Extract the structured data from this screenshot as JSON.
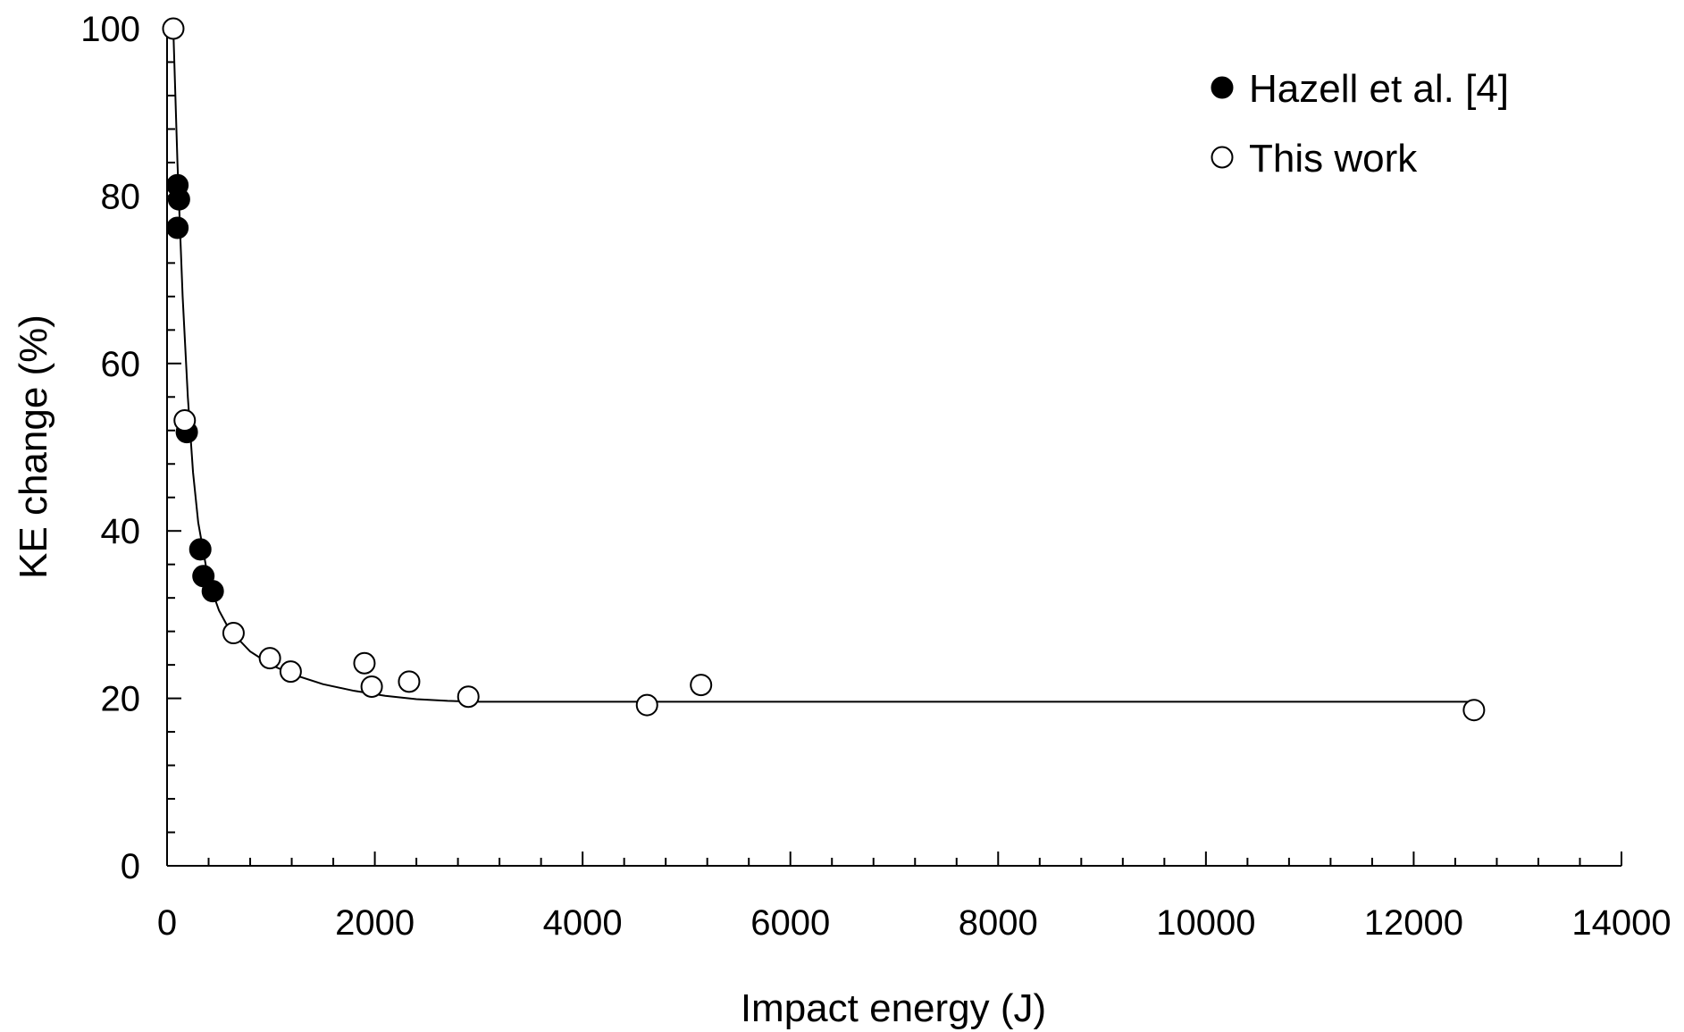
{
  "chart_data": {
    "type": "scatter",
    "xlabel": "Impact energy (J)",
    "ylabel": "KE change (%)",
    "xlim": [
      0,
      14000
    ],
    "ylim": [
      0,
      100
    ],
    "x_ticks": [
      0,
      2000,
      4000,
      6000,
      8000,
      10000,
      12000,
      14000
    ],
    "x_tick_labels": [
      "0",
      "2000",
      "4000",
      "6000",
      "8000",
      "10000",
      "12000",
      "14000"
    ],
    "y_ticks": [
      0,
      20,
      40,
      60,
      80,
      100
    ],
    "y_tick_labels": [
      "0",
      "20",
      "40",
      "60",
      "80",
      "100"
    ],
    "x_minor_step": 400,
    "y_minor_step": 4,
    "grid": false,
    "legend_position": "top-right",
    "series": [
      {
        "name": "Hazell et al. [4]",
        "marker": "filled-circle",
        "color": "#000000",
        "points": [
          {
            "x": 100,
            "y": 81.3
          },
          {
            "x": 115,
            "y": 79.6
          },
          {
            "x": 100,
            "y": 76.2
          },
          {
            "x": 190,
            "y": 51.8
          },
          {
            "x": 320,
            "y": 37.8
          },
          {
            "x": 350,
            "y": 34.6
          },
          {
            "x": 440,
            "y": 32.8
          }
        ]
      },
      {
        "name": "This work",
        "marker": "open-circle",
        "color": "#000000",
        "points": [
          {
            "x": 60,
            "y": 100
          },
          {
            "x": 170,
            "y": 53.2
          },
          {
            "x": 640,
            "y": 27.8
          },
          {
            "x": 990,
            "y": 24.8
          },
          {
            "x": 1190,
            "y": 23.2
          },
          {
            "x": 1900,
            "y": 24.2
          },
          {
            "x": 1970,
            "y": 21.4
          },
          {
            "x": 2330,
            "y": 22.0
          },
          {
            "x": 2900,
            "y": 20.2
          },
          {
            "x": 4620,
            "y": 19.2
          },
          {
            "x": 5140,
            "y": 21.6
          },
          {
            "x": 12580,
            "y": 18.6
          }
        ]
      }
    ],
    "fit_curve": {
      "style": "line",
      "color": "#000000",
      "points": [
        {
          "x": 60,
          "y": 100
        },
        {
          "x": 100,
          "y": 84
        },
        {
          "x": 150,
          "y": 68
        },
        {
          "x": 200,
          "y": 56
        },
        {
          "x": 250,
          "y": 47
        },
        {
          "x": 300,
          "y": 41
        },
        {
          "x": 400,
          "y": 34
        },
        {
          "x": 500,
          "y": 30.5
        },
        {
          "x": 600,
          "y": 28.2
        },
        {
          "x": 800,
          "y": 25.6
        },
        {
          "x": 1000,
          "y": 24.0
        },
        {
          "x": 1200,
          "y": 22.9
        },
        {
          "x": 1500,
          "y": 21.7
        },
        {
          "x": 1800,
          "y": 20.9
        },
        {
          "x": 2100,
          "y": 20.3
        },
        {
          "x": 2400,
          "y": 19.9
        },
        {
          "x": 2700,
          "y": 19.7
        },
        {
          "x": 3000,
          "y": 19.6
        },
        {
          "x": 4000,
          "y": 19.6
        },
        {
          "x": 12600,
          "y": 19.6
        }
      ]
    }
  }
}
